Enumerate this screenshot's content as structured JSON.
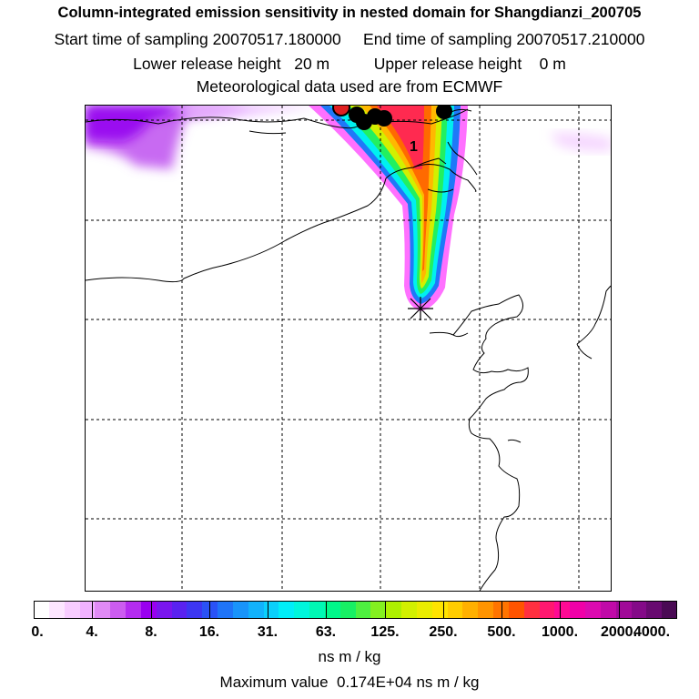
{
  "header": {
    "title": "Column-integrated emission sensitivity in nested domain for Shangdianzi_200705",
    "line2": "Start time of sampling 20070517.180000     End time of sampling 20070517.210000",
    "line3": "Lower release height   20 m          Upper release height    0 m",
    "line4": "Meteorological data used are from ECMWF"
  },
  "map": {
    "label_marker": "1",
    "release_site_symbol": "star"
  },
  "colorbar": {
    "ticks": [
      "0.",
      "4.",
      "8.",
      "16.",
      "31.",
      "63.",
      "125.",
      "250.",
      "500.",
      "1000.",
      "2000.",
      "4000."
    ],
    "units": "ns m / kg",
    "colors": [
      "#ffffff",
      "#fde6ff",
      "#f8ccff",
      "#f1b2ff",
      "#e08af5",
      "#cc5cf0",
      "#b42cf0",
      "#9a00f0",
      "#7a16ee",
      "#5a22f0",
      "#3d36f2",
      "#2a52f6",
      "#1f74f8",
      "#1994fa",
      "#12b2fb",
      "#0ad0fb",
      "#00eef8",
      "#00f6dc",
      "#00f8b4",
      "#00f88a",
      "#18f064",
      "#4ef040",
      "#84f020",
      "#aef000",
      "#d2f000",
      "#eaec00",
      "#ffe400",
      "#ffcc00",
      "#ffb000",
      "#ff9400",
      "#ff7400",
      "#ff5400",
      "#ff3040",
      "#ff1870",
      "#ff0a94",
      "#f000a8",
      "#dc0ab0",
      "#c00aa8",
      "#a00a98",
      "#840a88",
      "#680a70",
      "#4a0a54"
    ]
  },
  "max_value_text": "Maximum value  0.174E+04 ns m / kg"
}
